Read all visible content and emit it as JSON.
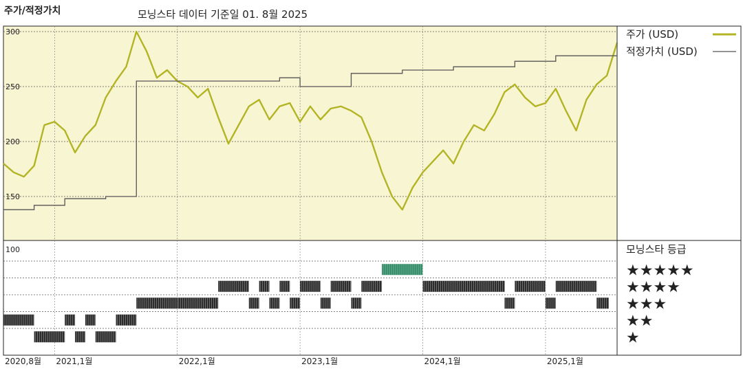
{
  "title": "주가/적정가치",
  "subtitle": "모닝스타 데이터 기준일 01. 8월 2025",
  "colors": {
    "price": "#b3b425",
    "fair_value": "#555555",
    "panel_bg": "#f8f5d2",
    "rating_bar": "#2b2b2b",
    "rating_bar_top": "#2e8a66"
  },
  "legend": {
    "price_label": "주가 (USD)",
    "fair_value_label": "적정가치 (USD)",
    "rating_title": "모닝스타 등급"
  },
  "chart_data": {
    "type": "line",
    "y_axis": {
      "ticks": [
        300,
        250,
        200,
        150
      ],
      "ylim": [
        110,
        305
      ],
      "grid": true
    },
    "rating_axis": {
      "label": "100",
      "levels": [
        "★★★★★",
        "★★★★",
        "★★★",
        "★★",
        "★"
      ]
    },
    "x_axis": {
      "tick_labels": [
        "2020,8월",
        "2021,1월",
        "2022,1월",
        "2023,1월",
        "2024,1월",
        "2025,1월"
      ],
      "tick_dates": [
        "2020-08",
        "2021-01",
        "2022-01",
        "2023-01",
        "2024-01",
        "2025-01"
      ],
      "range": [
        "2020-08",
        "2025-08"
      ]
    },
    "series": [
      {
        "name": "주가 (USD)",
        "points": [
          [
            "2020-08",
            180
          ],
          [
            "2020-09",
            172
          ],
          [
            "2020-10",
            168
          ],
          [
            "2020-11",
            178
          ],
          [
            "2020-12",
            215
          ],
          [
            "2021-01",
            218
          ],
          [
            "2021-02",
            210
          ],
          [
            "2021-03",
            190
          ],
          [
            "2021-04",
            205
          ],
          [
            "2021-05",
            215
          ],
          [
            "2021-06",
            240
          ],
          [
            "2021-07",
            255
          ],
          [
            "2021-08",
            268
          ],
          [
            "2021-09",
            300
          ],
          [
            "2021-10",
            282
          ],
          [
            "2021-11",
            258
          ],
          [
            "2021-12",
            265
          ],
          [
            "2022-01",
            255
          ],
          [
            "2022-02",
            250
          ],
          [
            "2022-03",
            240
          ],
          [
            "2022-04",
            248
          ],
          [
            "2022-05",
            222
          ],
          [
            "2022-06",
            198
          ],
          [
            "2022-07",
            215
          ],
          [
            "2022-08",
            232
          ],
          [
            "2022-09",
            238
          ],
          [
            "2022-10",
            220
          ],
          [
            "2022-11",
            232
          ],
          [
            "2022-12",
            235
          ],
          [
            "2023-01",
            218
          ],
          [
            "2023-02",
            232
          ],
          [
            "2023-03",
            220
          ],
          [
            "2023-04",
            230
          ],
          [
            "2023-05",
            232
          ],
          [
            "2023-06",
            228
          ],
          [
            "2023-07",
            222
          ],
          [
            "2023-08",
            200
          ],
          [
            "2023-09",
            172
          ],
          [
            "2023-10",
            150
          ],
          [
            "2023-11",
            138
          ],
          [
            "2023-12",
            158
          ],
          [
            "2024-01",
            172
          ],
          [
            "2024-02",
            182
          ],
          [
            "2024-03",
            192
          ],
          [
            "2024-04",
            180
          ],
          [
            "2024-05",
            200
          ],
          [
            "2024-06",
            215
          ],
          [
            "2024-07",
            210
          ],
          [
            "2024-08",
            225
          ],
          [
            "2024-09",
            245
          ],
          [
            "2024-10",
            252
          ],
          [
            "2024-11",
            240
          ],
          [
            "2024-12",
            232
          ],
          [
            "2025-01",
            235
          ],
          [
            "2025-02",
            248
          ],
          [
            "2025-03",
            228
          ],
          [
            "2025-04",
            210
          ],
          [
            "2025-05",
            238
          ],
          [
            "2025-06",
            252
          ],
          [
            "2025-07",
            260
          ],
          [
            "2025-08",
            290
          ]
        ]
      },
      {
        "name": "적정가치 (USD)",
        "step": true,
        "points": [
          [
            "2020-08",
            138
          ],
          [
            "2020-11",
            142
          ],
          [
            "2021-02",
            148
          ],
          [
            "2021-06",
            150
          ],
          [
            "2021-09",
            255
          ],
          [
            "2022-08",
            255
          ],
          [
            "2022-11",
            258
          ],
          [
            "2023-01",
            250
          ],
          [
            "2023-06",
            262
          ],
          [
            "2023-11",
            265
          ],
          [
            "2024-04",
            268
          ],
          [
            "2024-10",
            273
          ],
          [
            "2025-02",
            278
          ],
          [
            "2025-08",
            295
          ]
        ]
      }
    ],
    "ratings": [
      [
        "2020-08",
        2
      ],
      [
        "2020-11",
        1
      ],
      [
        "2021-02",
        2
      ],
      [
        "2021-03",
        1
      ],
      [
        "2021-04",
        2
      ],
      [
        "2021-05",
        1
      ],
      [
        "2021-07",
        2
      ],
      [
        "2021-09",
        3
      ],
      [
        "2022-01",
        3
      ],
      [
        "2022-03",
        3
      ],
      [
        "2022-05",
        4
      ],
      [
        "2022-08",
        3
      ],
      [
        "2022-09",
        4
      ],
      [
        "2022-10",
        3
      ],
      [
        "2022-11",
        4
      ],
      [
        "2022-12",
        3
      ],
      [
        "2023-01",
        4
      ],
      [
        "2023-03",
        3
      ],
      [
        "2023-04",
        4
      ],
      [
        "2023-06",
        3
      ],
      [
        "2023-07",
        4
      ],
      [
        "2023-09",
        5
      ],
      [
        "2024-01",
        4
      ],
      [
        "2024-09",
        3
      ],
      [
        "2024-10",
        4
      ],
      [
        "2025-01",
        3
      ],
      [
        "2025-02",
        4
      ],
      [
        "2025-06",
        3
      ]
    ]
  }
}
